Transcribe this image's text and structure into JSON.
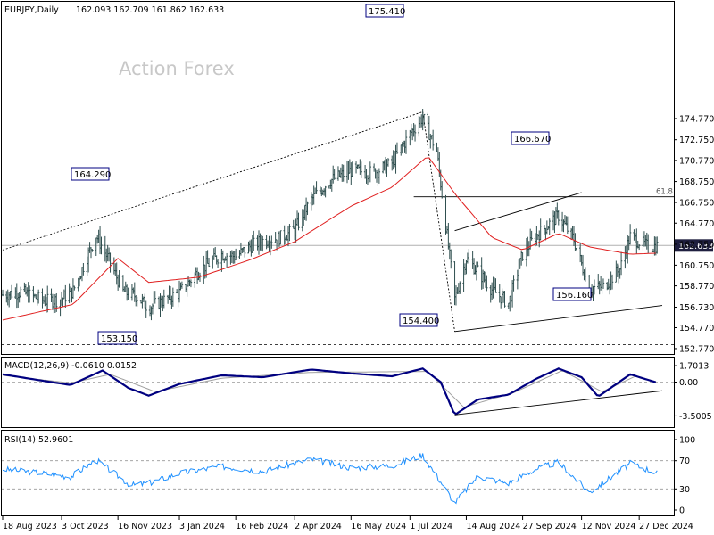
{
  "header": {
    "symbol": "EURJPY,Daily",
    "ohlc": "162.093 162.709 161.862 162.633"
  },
  "watermark": "Action Forex",
  "colors": {
    "background": "#ffffff",
    "frame": "#000000",
    "price_bars": "#2f4f4f",
    "moving_average": "#e02020",
    "macd_line": "#000080",
    "signal_line": "#a0a0a0",
    "rsi_line": "#1e90ff",
    "label_box_border": "#000080"
  },
  "chart_data": [
    {
      "type": "ohlc",
      "panel": "price",
      "title": "EURJPY,Daily 162.093 162.709 161.862 162.633",
      "y_ticks": [
        "174.770",
        "172.750",
        "170.770",
        "168.750",
        "166.750",
        "164.770",
        "162.750",
        "160.750",
        "158.770",
        "156.730",
        "154.770",
        "152.770"
      ],
      "ylim": [
        152.4,
        176.1
      ],
      "current_price": "162.633",
      "annotations": [
        {
          "label": "175.410",
          "date": "2024-07-11",
          "value": 175.41
        },
        {
          "label": "164.290",
          "date": "2023-10-30",
          "value": 164.29
        },
        {
          "label": "166.670",
          "date": "2024-10-01",
          "value": 166.67
        },
        {
          "label": "154.400",
          "date": "2024-08-05",
          "value": 154.4
        },
        {
          "label": "156.160",
          "date": "2024-11-18",
          "value": 156.16
        },
        {
          "label": "153.150",
          "date": "2023-11-26",
          "value": 153.15
        },
        {
          "label": "61.8",
          "date": "2024-12-31",
          "value": 167.29
        }
      ],
      "horizontal_levels": [
        {
          "name": "current",
          "value": 162.633
        },
        {
          "name": "fib-61.8",
          "value": 167.29
        },
        {
          "name": "support-153.150",
          "value": 153.15
        }
      ],
      "trendlines": [
        {
          "from": [
            "2023-08-18",
            162.2
          ],
          "to": [
            "2024-07-11",
            175.41
          ],
          "style": "dotted"
        },
        {
          "from": [
            "2024-07-11",
            175.41
          ],
          "to": [
            "2024-08-05",
            154.4
          ],
          "style": "dotted"
        },
        {
          "from": [
            "2024-08-05",
            164.05
          ],
          "to": [
            "2024-11-12",
            167.7
          ],
          "style": "solid"
        },
        {
          "from": [
            "2024-08-05",
            154.4
          ],
          "to": [
            "2025-01-14",
            156.9
          ],
          "style": "solid"
        }
      ],
      "closes_sample": [
        {
          "date": "2023-08-18",
          "close": 157.9
        },
        {
          "date": "2023-09-01",
          "close": 158.2
        },
        {
          "date": "2023-09-20",
          "close": 157.3
        },
        {
          "date": "2023-10-03",
          "close": 157.5
        },
        {
          "date": "2023-10-12",
          "close": 158.3
        },
        {
          "date": "2023-10-30",
          "close": 163.6
        },
        {
          "date": "2023-11-10",
          "close": 161.0
        },
        {
          "date": "2023-11-20",
          "close": 158.2
        },
        {
          "date": "2023-11-30",
          "close": 157.8
        },
        {
          "date": "2023-12-10",
          "close": 156.7
        },
        {
          "date": "2024-01-03",
          "close": 158.1
        },
        {
          "date": "2024-01-18",
          "close": 160.2
        },
        {
          "date": "2024-02-05",
          "close": 161.8
        },
        {
          "date": "2024-02-16",
          "close": 161.6
        },
        {
          "date": "2024-02-28",
          "close": 162.6
        },
        {
          "date": "2024-03-08",
          "close": 163.1
        },
        {
          "date": "2024-03-22",
          "close": 163.4
        },
        {
          "date": "2024-04-02",
          "close": 164.1
        },
        {
          "date": "2024-04-15",
          "close": 167.0
        },
        {
          "date": "2024-04-29",
          "close": 168.8
        },
        {
          "date": "2024-05-16",
          "close": 169.8
        },
        {
          "date": "2024-06-03",
          "close": 169.6
        },
        {
          "date": "2024-06-17",
          "close": 170.5
        },
        {
          "date": "2024-07-01",
          "close": 173.3
        },
        {
          "date": "2024-07-11",
          "close": 174.9
        },
        {
          "date": "2024-07-22",
          "close": 171.6
        },
        {
          "date": "2024-08-05",
          "close": 157.5
        },
        {
          "date": "2024-08-14",
          "close": 161.4
        },
        {
          "date": "2024-08-23",
          "close": 160.2
        },
        {
          "date": "2024-09-03",
          "close": 158.4
        },
        {
          "date": "2024-09-16",
          "close": 157.1
        },
        {
          "date": "2024-09-27",
          "close": 161.8
        },
        {
          "date": "2024-10-07",
          "close": 163.5
        },
        {
          "date": "2024-10-25",
          "close": 165.5
        },
        {
          "date": "2024-11-06",
          "close": 163.2
        },
        {
          "date": "2024-11-18",
          "close": 158.5
        },
        {
          "date": "2024-11-29",
          "close": 158.7
        },
        {
          "date": "2024-12-12",
          "close": 160.4
        },
        {
          "date": "2024-12-20",
          "close": 163.5
        },
        {
          "date": "2025-01-03",
          "close": 162.5
        },
        {
          "date": "2025-01-10",
          "close": 162.6
        }
      ],
      "moving_average_sample": [
        {
          "date": "2023-08-18",
          "value": 155.5
        },
        {
          "date": "2023-10-12",
          "value": 157.0
        },
        {
          "date": "2023-11-16",
          "value": 161.4
        },
        {
          "date": "2023-12-10",
          "value": 159.1
        },
        {
          "date": "2024-01-18",
          "value": 159.6
        },
        {
          "date": "2024-02-28",
          "value": 161.3
        },
        {
          "date": "2024-04-02",
          "value": 163.0
        },
        {
          "date": "2024-05-16",
          "value": 166.4
        },
        {
          "date": "2024-06-17",
          "value": 168.2
        },
        {
          "date": "2024-07-15",
          "value": 171.2
        },
        {
          "date": "2024-08-05",
          "value": 167.6
        },
        {
          "date": "2024-09-03",
          "value": 163.4
        },
        {
          "date": "2024-09-27",
          "value": 162.2
        },
        {
          "date": "2024-10-25",
          "value": 163.8
        },
        {
          "date": "2024-11-18",
          "value": 162.5
        },
        {
          "date": "2024-12-20",
          "value": 161.8
        },
        {
          "date": "2025-01-10",
          "value": 161.9
        }
      ]
    },
    {
      "type": "line",
      "panel": "macd",
      "title": "MACD(12,26,9) -0.0610 0.0152",
      "y_ticks": [
        "1.7013",
        "0.00",
        "-3.5005"
      ],
      "ylim": [
        -4.0,
        2.0
      ],
      "series_values": {
        "macd": [
          {
            "date": "2023-08-18",
            "value": 0.8
          },
          {
            "date": "2023-09-20",
            "value": 0.1
          },
          {
            "date": "2023-10-10",
            "value": -0.3
          },
          {
            "date": "2023-11-04",
            "value": 1.2
          },
          {
            "date": "2023-11-24",
            "value": -0.6
          },
          {
            "date": "2023-12-10",
            "value": -1.4
          },
          {
            "date": "2024-01-03",
            "value": -0.2
          },
          {
            "date": "2024-02-05",
            "value": 0.7
          },
          {
            "date": "2024-03-08",
            "value": 0.5
          },
          {
            "date": "2024-04-15",
            "value": 1.3
          },
          {
            "date": "2024-05-16",
            "value": 0.9
          },
          {
            "date": "2024-06-17",
            "value": 0.6
          },
          {
            "date": "2024-07-11",
            "value": 1.4
          },
          {
            "date": "2024-07-25",
            "value": 0.0
          },
          {
            "date": "2024-08-05",
            "value": -3.4
          },
          {
            "date": "2024-08-23",
            "value": -1.8
          },
          {
            "date": "2024-09-16",
            "value": -1.3
          },
          {
            "date": "2024-10-07",
            "value": 0.3
          },
          {
            "date": "2024-10-25",
            "value": 1.4
          },
          {
            "date": "2024-11-12",
            "value": 0.5
          },
          {
            "date": "2024-11-25",
            "value": -1.5
          },
          {
            "date": "2024-12-20",
            "value": 0.8
          },
          {
            "date": "2025-01-10",
            "value": -0.06
          }
        ],
        "signal": [
          {
            "date": "2023-08-18",
            "value": 0.7
          },
          {
            "date": "2023-10-10",
            "value": -0.1
          },
          {
            "date": "2023-11-10",
            "value": 0.8
          },
          {
            "date": "2023-12-15",
            "value": -1.0
          },
          {
            "date": "2024-02-05",
            "value": 0.4
          },
          {
            "date": "2024-04-15",
            "value": 1.0
          },
          {
            "date": "2024-07-15",
            "value": 1.1
          },
          {
            "date": "2024-08-12",
            "value": -2.6
          },
          {
            "date": "2024-09-20",
            "value": -1.1
          },
          {
            "date": "2024-10-28",
            "value": 1.2
          },
          {
            "date": "2024-11-28",
            "value": -1.0
          },
          {
            "date": "2024-12-24",
            "value": 0.6
          },
          {
            "date": "2025-01-10",
            "value": 0.0152
          }
        ]
      },
      "trendline": {
        "from": [
          "2024-08-05",
          -3.4
        ],
        "to": [
          "2025-01-14",
          -0.9
        ]
      }
    },
    {
      "type": "line",
      "panel": "rsi",
      "title": "RSI(14) 52.9601",
      "y_ticks": [
        "100",
        "70",
        "30",
        "0"
      ],
      "ylim": [
        0,
        100
      ],
      "levels": [
        70,
        30
      ],
      "series_values": [
        {
          "date": "2023-08-18",
          "value": 58
        },
        {
          "date": "2023-09-20",
          "value": 52
        },
        {
          "date": "2023-10-10",
          "value": 47
        },
        {
          "date": "2023-10-30",
          "value": 71
        },
        {
          "date": "2023-11-26",
          "value": 35
        },
        {
          "date": "2023-12-10",
          "value": 38
        },
        {
          "date": "2024-01-03",
          "value": 52
        },
        {
          "date": "2024-02-05",
          "value": 62
        },
        {
          "date": "2024-03-08",
          "value": 55
        },
        {
          "date": "2024-04-15",
          "value": 72
        },
        {
          "date": "2024-05-16",
          "value": 60
        },
        {
          "date": "2024-06-17",
          "value": 63
        },
        {
          "date": "2024-07-11",
          "value": 78
        },
        {
          "date": "2024-07-25",
          "value": 40
        },
        {
          "date": "2024-08-05",
          "value": 10
        },
        {
          "date": "2024-08-23",
          "value": 48
        },
        {
          "date": "2024-09-16",
          "value": 38
        },
        {
          "date": "2024-10-07",
          "value": 58
        },
        {
          "date": "2024-10-25",
          "value": 68
        },
        {
          "date": "2024-11-18",
          "value": 25
        },
        {
          "date": "2024-12-20",
          "value": 66
        },
        {
          "date": "2025-01-10",
          "value": 52.96
        }
      ]
    }
  ],
  "x_ticks": [
    {
      "label": "18 Aug 2023",
      "date": "2023-08-18"
    },
    {
      "label": "3 Oct 2023",
      "date": "2023-10-03"
    },
    {
      "label": "16 Nov 2023",
      "date": "2023-11-16"
    },
    {
      "label": "3 Jan 2024",
      "date": "2024-01-03"
    },
    {
      "label": "16 Feb 2024",
      "date": "2024-02-16"
    },
    {
      "label": "2 Apr 2024",
      "date": "2024-04-02"
    },
    {
      "label": "16 May 2024",
      "date": "2024-05-16"
    },
    {
      "label": "1 Jul 2024",
      "date": "2024-07-01"
    },
    {
      "label": "14 Aug 2024",
      "date": "2024-08-14"
    },
    {
      "label": "27 Sep 2024",
      "date": "2024-09-27"
    },
    {
      "label": "12 Nov 2024",
      "date": "2024-11-12"
    },
    {
      "label": "27 Dec 2024",
      "date": "2024-12-27"
    }
  ]
}
